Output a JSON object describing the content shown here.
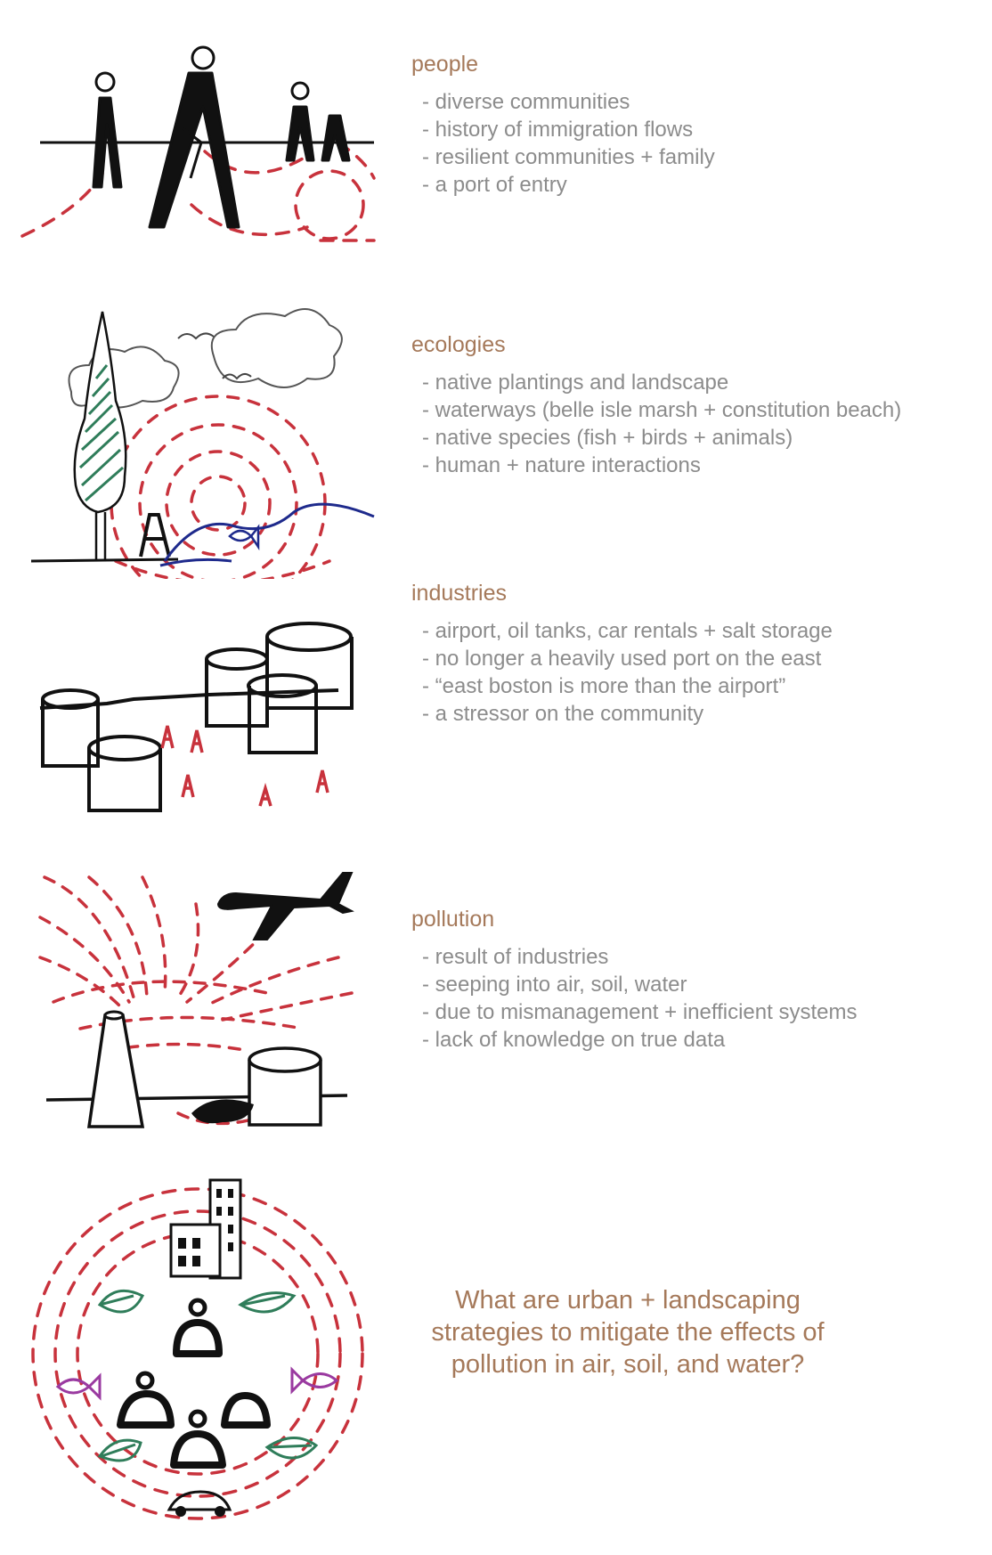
{
  "sections": [
    {
      "title": "people",
      "items": [
        "diverse communities",
        "history of immigration flows",
        "resilient communities + family",
        "a port of entry"
      ]
    },
    {
      "title": "ecologies",
      "items": [
        "native plantings and landscape",
        "waterways (belle isle marsh + constitution beach)",
        "native species (fish + birds + animals)",
        "human + nature interactions"
      ]
    },
    {
      "title": "industries",
      "items": [
        "airport, oil tanks, car rentals + salt storage",
        "no longer a heavily used port on the east",
        "“east boston is more than the airport”",
        "a stressor on the community"
      ]
    },
    {
      "title": "pollution",
      "items": [
        "result of industries",
        "seeping into air, soil, water",
        "due to mismanagement + inefficient systems",
        "lack of knowledge on true data"
      ]
    }
  ],
  "question": {
    "lines": [
      "What are urban + landscaping",
      "strategies to mitigate the effects of",
      "pollution in air, soil, and water?"
    ]
  },
  "colors": {
    "heading": "#a5795a",
    "body": "#8c8c8c",
    "ink": "#111111",
    "red_dash": "#c8323c",
    "green": "#2f7d5a",
    "blue": "#1e2a8c",
    "purple": "#9a3aa0"
  }
}
